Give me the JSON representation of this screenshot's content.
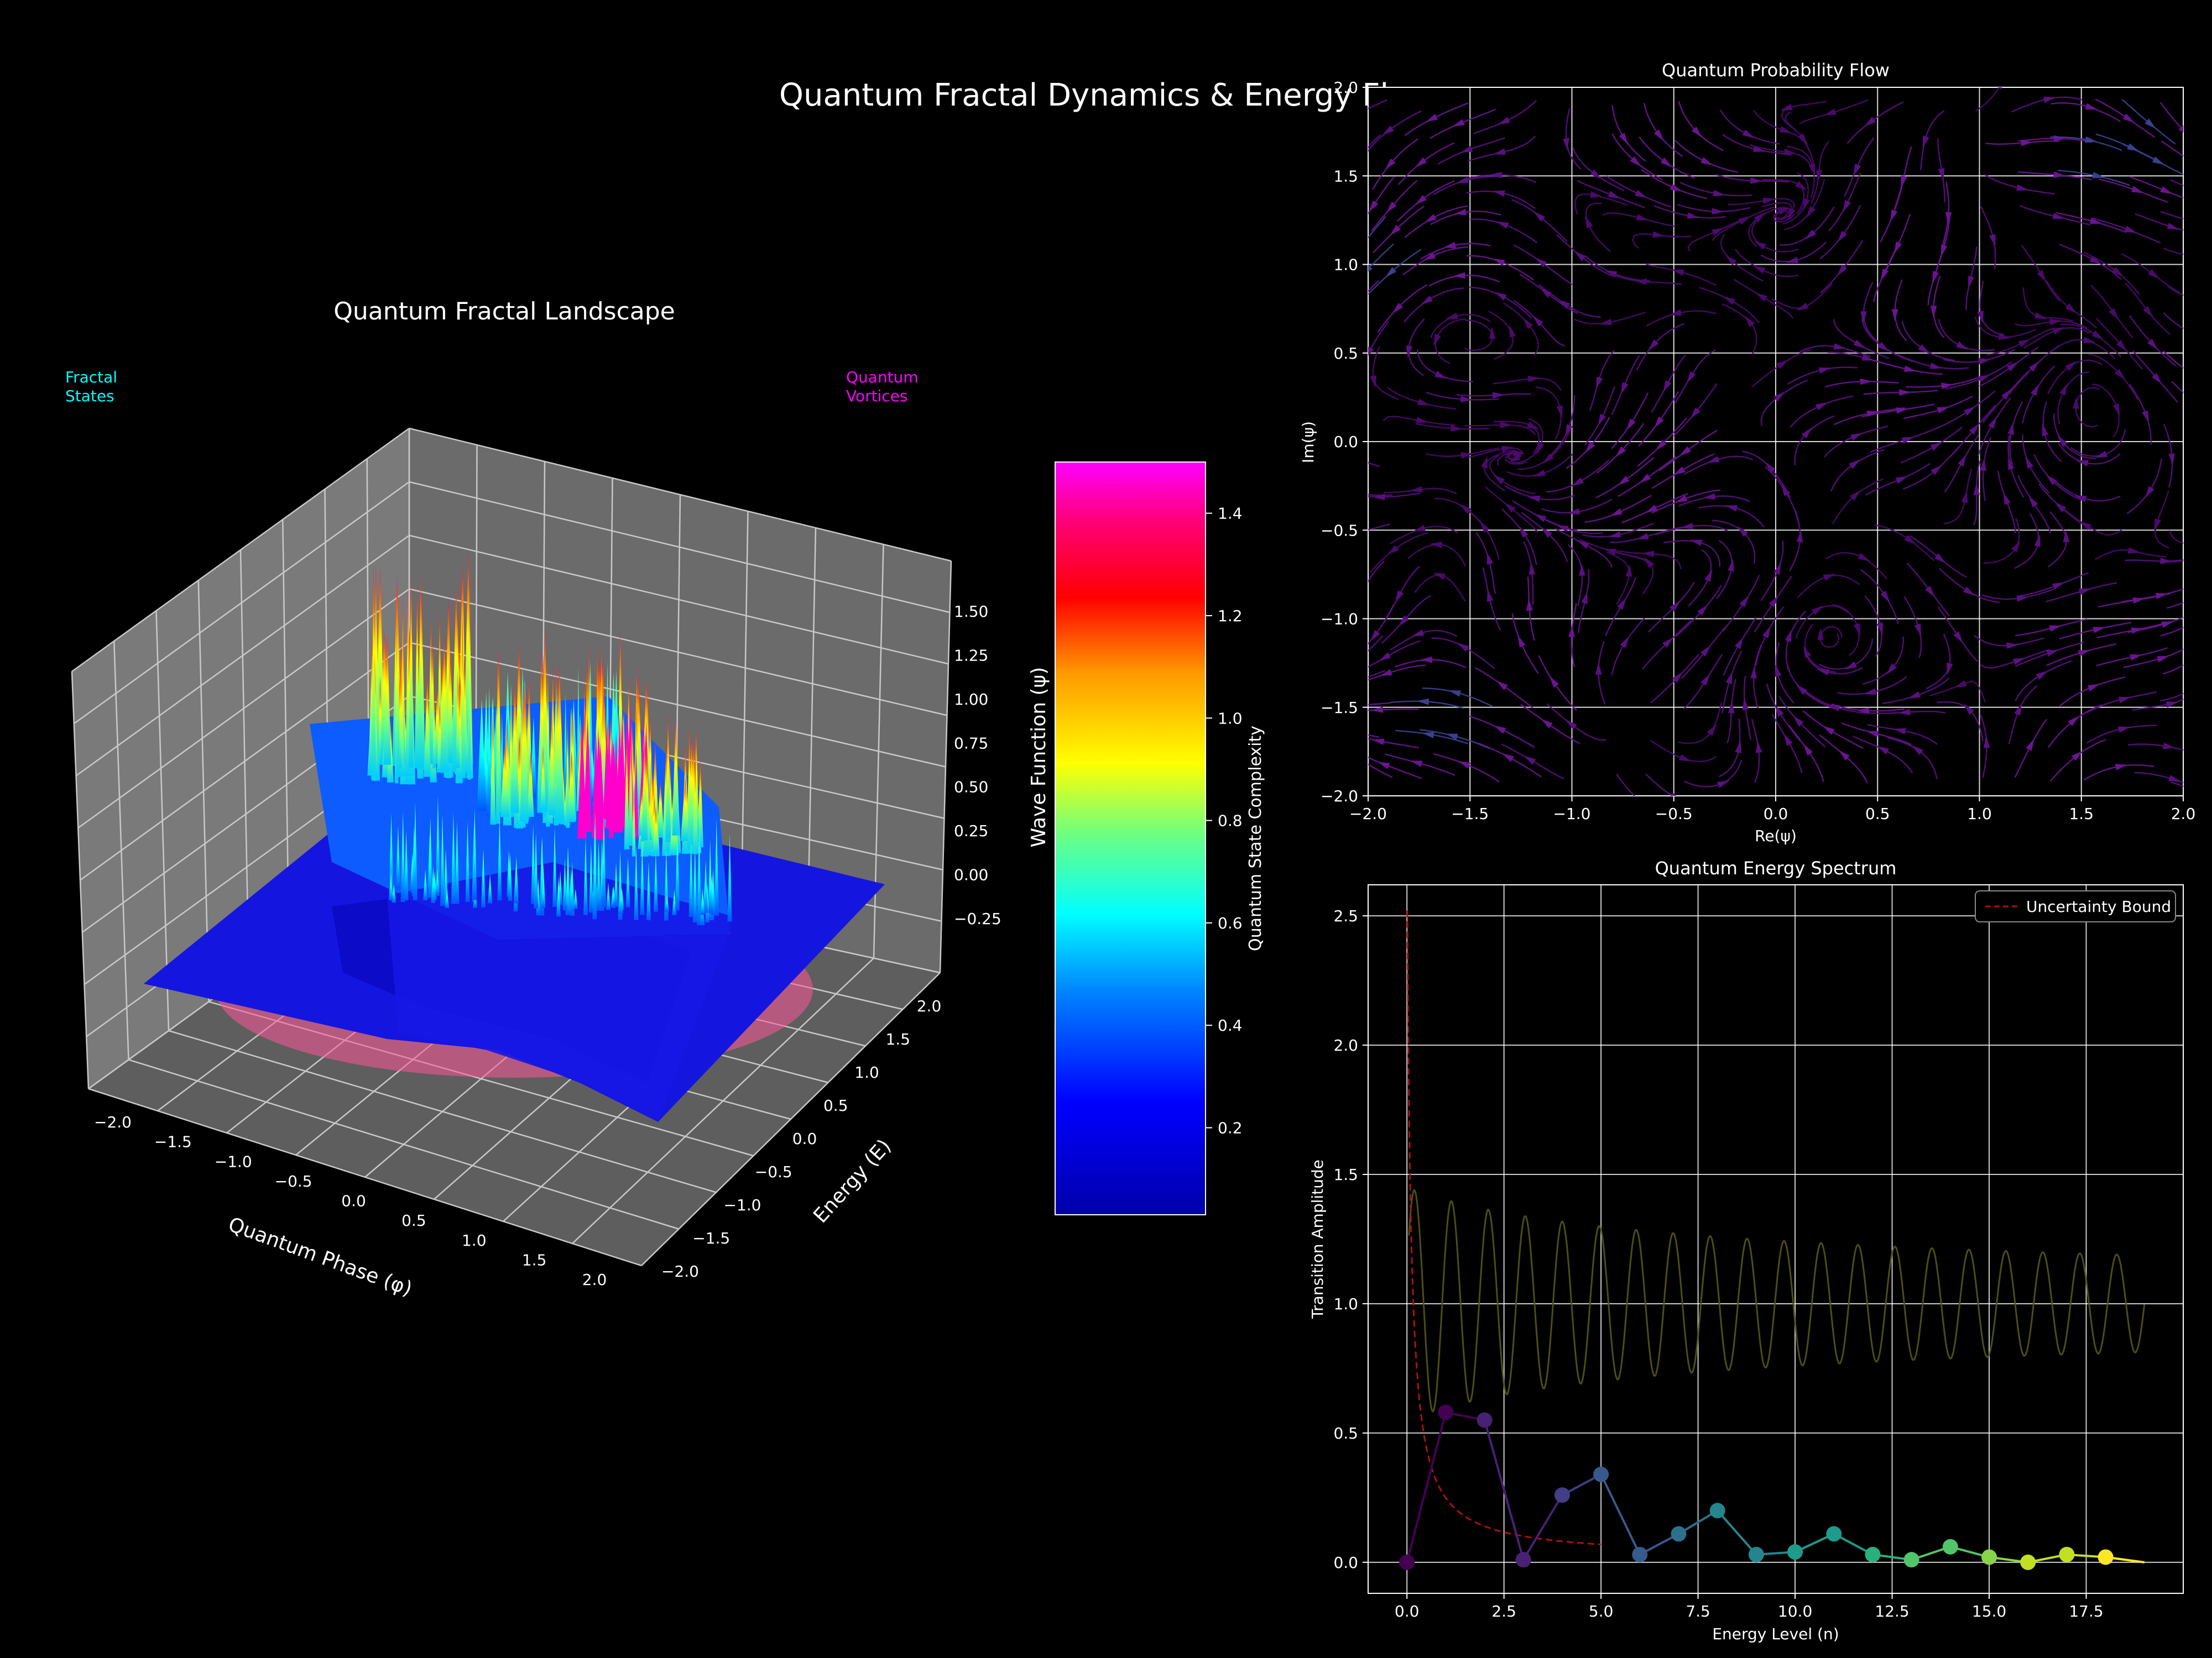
{
  "figure": {
    "title": "Quantum Fractal Dynamics & Energy Flow"
  },
  "chart_data": [
    {
      "type": "surface3d",
      "title": "Quantum Fractal Landscape",
      "xlabel": "Quantum Phase (φ)",
      "ylabel": "Energy (E)",
      "zlabel": "Wave Function (ψ)",
      "xticks": [
        "−2.0",
        "−1.5",
        "−1.0",
        "−0.5",
        "0.0",
        "0.5",
        "1.0",
        "1.5",
        "2.0"
      ],
      "yticks": [
        "−2.0",
        "−1.5",
        "−1.0",
        "−0.5",
        "0.0",
        "0.5",
        "1.0",
        "1.5",
        "2.0"
      ],
      "zticks": [
        "−0.25",
        "0.00",
        "0.25",
        "0.50",
        "0.75",
        "1.00",
        "1.25",
        "1.50"
      ],
      "xlim": [
        -2,
        2
      ],
      "ylim": [
        -2,
        2
      ],
      "zlim": [
        -0.4,
        1.7
      ],
      "annotations": [
        {
          "text": "Fractal\nStates",
          "color": "#00ffff"
        },
        {
          "text": "Quantum\nVortices",
          "color": "#ff00ff"
        }
      ],
      "colormap": "gist_rainbow_r",
      "colorbar": {
        "label": "Quantum State Complexity",
        "ticks": [
          "0.2",
          "0.4",
          "0.6",
          "0.8",
          "1.0",
          "1.2",
          "1.4"
        ],
        "tick_values": [
          0.2,
          0.4,
          0.6,
          0.8,
          1.0,
          1.2,
          1.4
        ],
        "range": [
          0.03,
          1.5
        ]
      }
    },
    {
      "type": "streamplot",
      "title": "Quantum Probability Flow",
      "xlabel": "Re(ψ)",
      "ylabel": "Im(ψ)",
      "xlim": [
        -2,
        2
      ],
      "ylim": [
        -2,
        2
      ],
      "xticks": [
        "−2.0",
        "−1.5",
        "−1.0",
        "−0.5",
        "0.0",
        "0.5",
        "1.0",
        "1.5",
        "2.0"
      ],
      "yticks": [
        "−2.0",
        "−1.5",
        "−1.0",
        "−0.5",
        "0.0",
        "0.5",
        "1.0",
        "1.5",
        "2.0"
      ],
      "grid": true
    },
    {
      "type": "line",
      "title": "Quantum Energy Spectrum",
      "xlabel": "Energy Level (n)",
      "ylabel": "Transition Amplitude",
      "xlim": [
        -1,
        20
      ],
      "ylim": [
        -0.12,
        2.62
      ],
      "xticks": [
        "0.0",
        "2.5",
        "5.0",
        "7.5",
        "10.0",
        "12.5",
        "15.0",
        "17.5"
      ],
      "yticks": [
        "0.0",
        "0.5",
        "1.0",
        "1.5",
        "2.0",
        "2.5"
      ],
      "grid": true,
      "legend": {
        "position": "top-right",
        "entries": [
          "Uncertainty Bound"
        ]
      },
      "series": [
        {
          "name": "Uncertainty Bound",
          "style": "dashed",
          "color": "#aa1111"
        },
        {
          "style": "markers+line",
          "x": [
            0,
            1,
            2,
            3,
            4,
            5,
            6,
            7,
            8,
            9,
            10,
            11,
            12,
            13,
            14,
            15,
            16,
            17,
            18,
            19
          ],
          "y": [
            0.0,
            0.58,
            0.55,
            0.01,
            0.26,
            0.34,
            0.03,
            0.11,
            0.2,
            0.03,
            0.04,
            0.11,
            0.03,
            0.01,
            0.06,
            0.02,
            0.0,
            0.03,
            0.02,
            0.0
          ]
        }
      ]
    }
  ]
}
